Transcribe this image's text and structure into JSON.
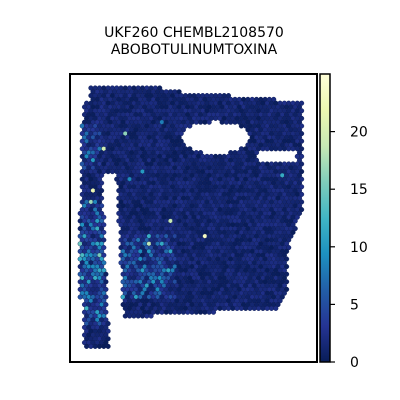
{
  "chart_data": {
    "type": "heatmap",
    "title": [
      "UKF260 CHEMBL2108570",
      "ABOBOTULINUMTOXINA"
    ],
    "colorbar": {
      "ticks": [
        0,
        5,
        10,
        15,
        20
      ],
      "range": [
        0,
        25
      ],
      "colormap": [
        "#081d58",
        "#253494",
        "#225ea8",
        "#1d91c0",
        "#41b6c4",
        "#7fcdbb",
        "#c7e9b4",
        "#edf8b1",
        "#ffffd9"
      ]
    },
    "hotspots": [
      {
        "region": "left strip",
        "value": 12
      },
      {
        "region": "left strip lower",
        "value": 10
      },
      {
        "region": "lower-left body",
        "value": 8
      },
      {
        "region": "upper-left",
        "value": 7
      }
    ]
  }
}
